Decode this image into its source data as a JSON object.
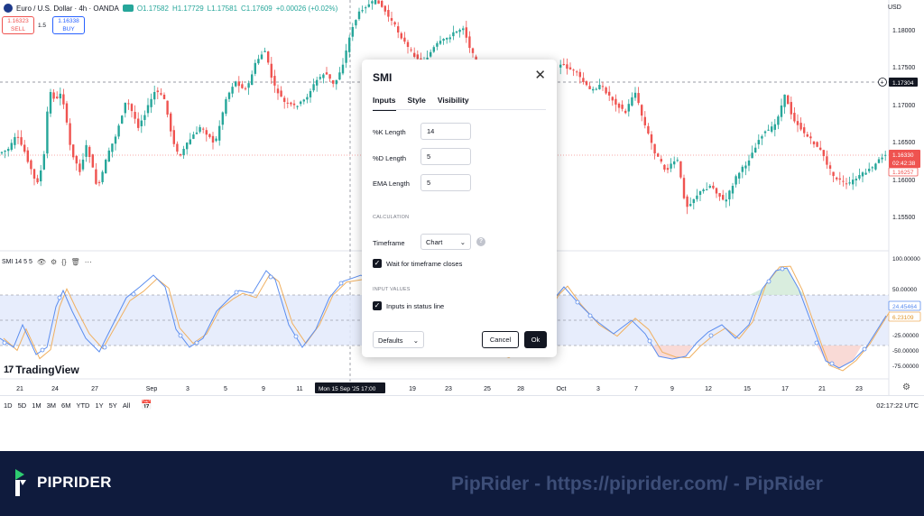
{
  "symbol": {
    "name": "Euro / U.S. Dollar · 4h · OANDA",
    "open": "O1.17582",
    "high": "H1.17729",
    "low": "L1.17581",
    "close": "C1.17609",
    "change": "+0.00026 (+0.02%)"
  },
  "trade": {
    "sell_price": "1.16323",
    "sell_label": "SELL",
    "spread": "1.5",
    "buy_price": "1.16338",
    "buy_label": "BUY"
  },
  "currency": "USD",
  "price_axis": [
    "1.18000",
    "1.17500",
    "1.17000",
    "1.16500",
    "1.16000",
    "1.15500"
  ],
  "price_tags": {
    "crosshair": "1.17304",
    "current": "1.16330",
    "countdown": "02:42:38",
    "low_tag": "1.16257"
  },
  "indicator": {
    "legend": "SMI 14 5 5",
    "axis": [
      "100.00000",
      "50.00000",
      "-25.00000",
      "-50.00000",
      "-75.00000"
    ],
    "k_value": "24.45464",
    "d_value": "6.23109"
  },
  "time_axis": {
    "labels": [
      "21",
      "24",
      "27",
      "Sep",
      "3",
      "5",
      "9",
      "11",
      "19",
      "23",
      "25",
      "28",
      "Oct",
      "3",
      "7",
      "9",
      "12",
      "15",
      "17",
      "21",
      "23"
    ],
    "crosshair": "Mon 15 Sep '25   17:00"
  },
  "logo": "TradingView",
  "timeframes": [
    "1D",
    "5D",
    "1M",
    "3M",
    "6M",
    "YTD",
    "1Y",
    "5Y",
    "All"
  ],
  "clock": "02:17:22 UTC",
  "dialog": {
    "title": "SMI",
    "tabs": [
      "Inputs",
      "Style",
      "Visibility"
    ],
    "k_length_label": "%K Length",
    "k_length": "14",
    "d_length_label": "%D Length",
    "d_length": "5",
    "ema_length_label": "EMA Length",
    "ema_length": "5",
    "calc_section": "CALCULATION",
    "timeframe_label": "Timeframe",
    "timeframe_value": "Chart",
    "wait_label": "Wait for timeframe closes",
    "input_values_section": "INPUT VALUES",
    "status_line_label": "Inputs in status line",
    "defaults": "Defaults",
    "cancel": "Cancel",
    "ok": "Ok"
  },
  "footer": {
    "brand": "PIPRIDER",
    "watermark": "PipRider - https://piprider.com/ - PipRider"
  },
  "colors": {
    "up": "#26a69a",
    "down": "#ef5350",
    "k_line": "#5b8def",
    "d_line": "#f0b060",
    "footer_bg": "#0f1b3d"
  }
}
